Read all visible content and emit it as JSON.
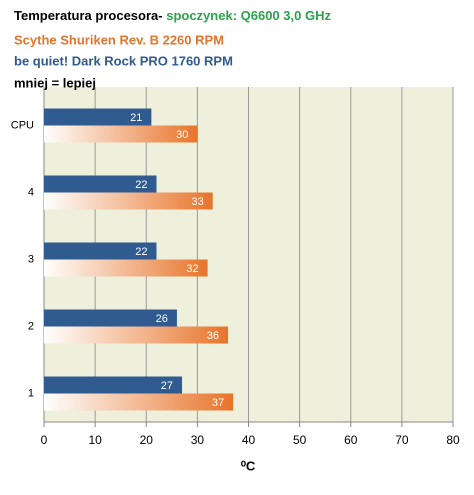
{
  "chart_data": {
    "type": "bar",
    "orientation": "horizontal",
    "title": "Temperatura procesora-",
    "title_color": "#000000",
    "subtitle": "spoczynek: Q6600 3,0 GHz",
    "subtitle_color": "#2ba24c",
    "annotation": "mniej = lepiej",
    "categories": [
      "CPU",
      "4",
      "3",
      "2",
      "1"
    ],
    "series": [
      {
        "name": "Scythe Shuriken Rev. B 2260  RPM",
        "color": "#e8742a",
        "values": [
          30,
          33,
          32,
          36,
          37
        ]
      },
      {
        "name": "be quiet! Dark Rock PRO 1760  RPM",
        "color": "#2f5b91",
        "values": [
          21,
          22,
          22,
          26,
          27
        ]
      }
    ],
    "xlabel": "⁰C",
    "xlim": [
      0,
      80
    ],
    "xticks": [
      0,
      10,
      20,
      30,
      40,
      50,
      60,
      70,
      80
    ],
    "grid": true
  }
}
